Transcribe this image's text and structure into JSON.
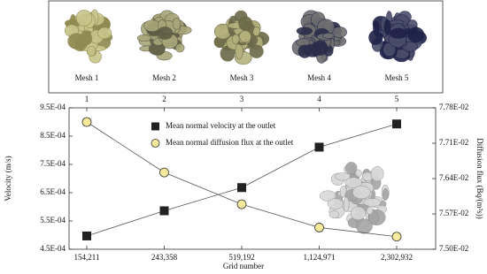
{
  "chart_data": {
    "type": "line",
    "mesh_labels": [
      "Mesh 1",
      "Mesh 2",
      "Mesh 3",
      "Mesh 4",
      "Mesh 5"
    ],
    "x2ticks": [
      1,
      2,
      3,
      4,
      5
    ],
    "categories": [
      "154,211",
      "243,358",
      "519,192",
      "1,124,971",
      "2,302,932"
    ],
    "xlabel": "Grid number",
    "ylabel": "Velocity (m/s)",
    "y2label": "Diffusion flux (Bq/(m²s))",
    "ylim": [
      0.00045,
      0.00095
    ],
    "yticks": [
      {
        "value": 0.00045,
        "label": "4.5E-04"
      },
      {
        "value": 0.00055,
        "label": "5.5E-04"
      },
      {
        "value": 0.00065,
        "label": "6.5E-04"
      },
      {
        "value": 0.00075,
        "label": "7.5E-04"
      },
      {
        "value": 0.00085,
        "label": "8.5E-04"
      },
      {
        "value": 0.00095,
        "label": "9.5E-04"
      }
    ],
    "y2lim": [
      0.075,
      0.0778
    ],
    "y2ticks": [
      {
        "value": 0.075,
        "label": "7.50E-02"
      },
      {
        "value": 0.0757,
        "label": "7.57E-02"
      },
      {
        "value": 0.0764,
        "label": "7.64E-02"
      },
      {
        "value": 0.0771,
        "label": "7.71E-02"
      },
      {
        "value": 0.0778,
        "label": "7.78E-02"
      }
    ],
    "series": [
      {
        "name": "Mean normal velocity at the outlet",
        "color": "#222222",
        "marker": "square",
        "values": [
          0.000497,
          0.000586,
          0.000668,
          0.000811,
          0.000893
        ]
      },
      {
        "name": "Mean normal diffusion flux at the outlet",
        "color": "#f7ea9c",
        "marker": "circle",
        "axis": "y2",
        "values": [
          0.07752,
          0.07652,
          0.07589,
          0.07543,
          0.07525
        ]
      }
    ]
  }
}
